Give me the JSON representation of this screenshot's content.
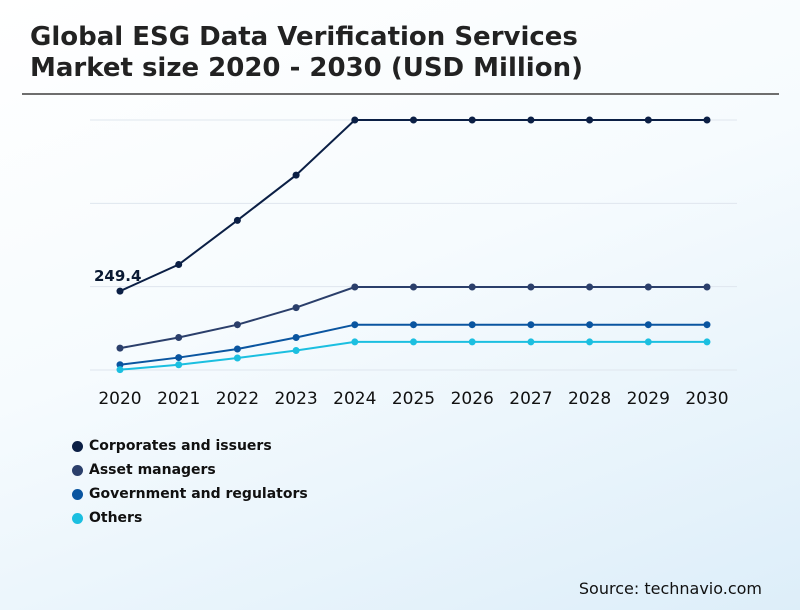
{
  "title_line1": "Global ESG Data Verification Services",
  "title_line2": "Market size 2020 - 2030 (USD Million)",
  "source": "Source: technavio.com",
  "chart_data": {
    "type": "line",
    "title": "Global ESG Data Verification Services Market size 2020 - 2030 (USD Million)",
    "xlabel": "",
    "ylabel": "",
    "categories": [
      "2020",
      "2021",
      "2022",
      "2023",
      "2024",
      "2025",
      "2026",
      "2027",
      "2028",
      "2029",
      "2030"
    ],
    "ylim": [
      0,
      1750
    ],
    "grid": true,
    "legend_position": "bottom-left",
    "annotations": [
      {
        "series": 0,
        "index": 0,
        "text": "249.4"
      }
    ],
    "series": [
      {
        "name": "Corporates and issuers",
        "color": "#0b1f45",
        "values": [
          249.4,
          333.5,
          473.1,
          616.2,
          790.4,
          790.4,
          790.4,
          790.4,
          790.4,
          790.4,
          790.4
        ]
      },
      {
        "name": "Asset managers",
        "color": "#2b3f6b",
        "values": [
          69.1,
          102.7,
          143.2,
          197.3,
          262.3,
          262.3,
          262.3,
          262.3,
          262.3,
          262.3,
          262.3
        ]
      },
      {
        "name": "Government and regulators",
        "color": "#0a55a0",
        "values": [
          16.6,
          39.3,
          66.3,
          102.7,
          143.2,
          143.2,
          143.2,
          143.2,
          143.2,
          143.2,
          143.2
        ]
      },
      {
        "name": "Others",
        "color": "#1bbfe0",
        "values": [
          1.0,
          16.6,
          37.9,
          61.6,
          88.8,
          88.8,
          88.8,
          88.8,
          88.8,
          88.8,
          88.8
        ]
      }
    ]
  }
}
